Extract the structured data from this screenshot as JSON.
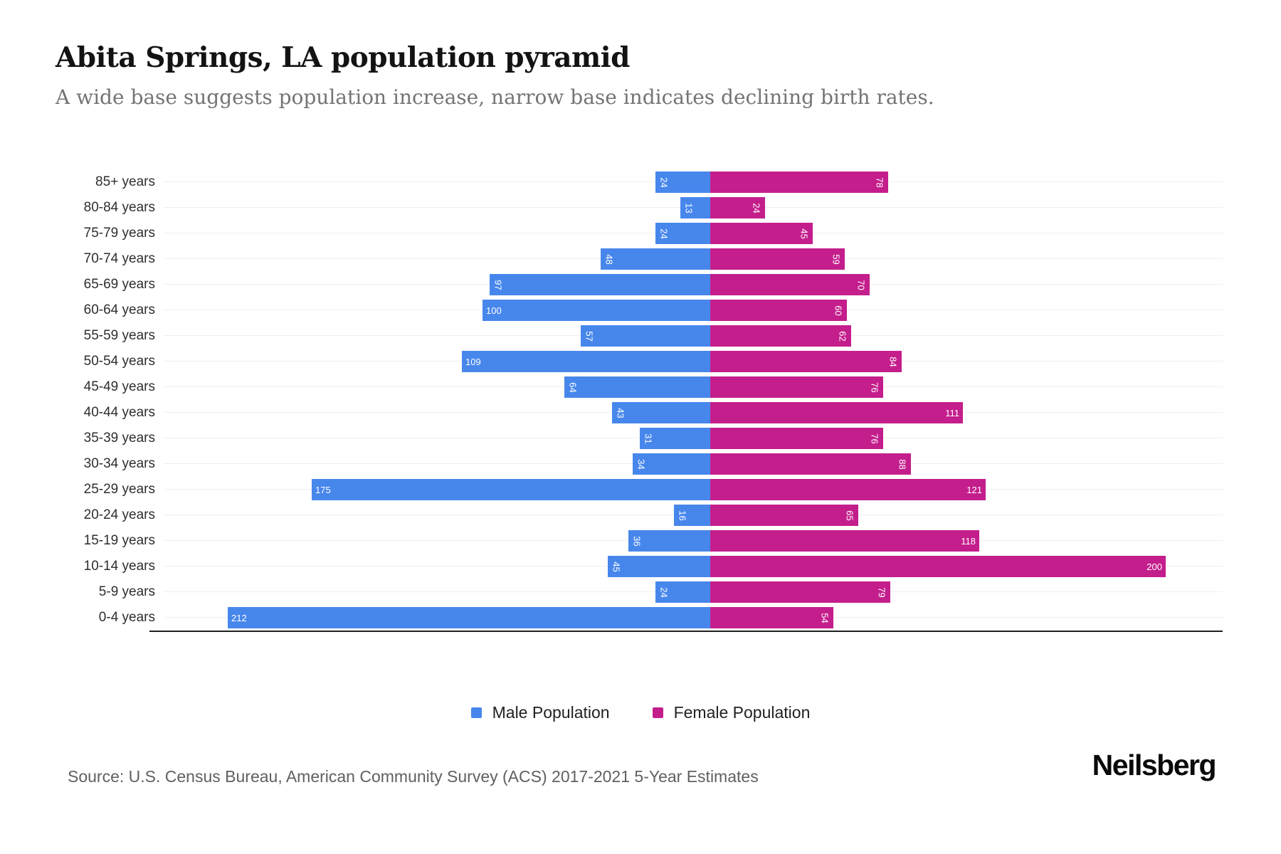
{
  "header": {
    "title": "Abita Springs, LA population pyramid",
    "subtitle": "A wide base suggests population increase, narrow base indicates declining birth rates."
  },
  "chart_data": {
    "type": "bar",
    "variant": "population-pyramid",
    "orientation": "horizontal",
    "title": "Abita Springs, LA population pyramid",
    "categories": [
      "85+ years",
      "80-84 years",
      "75-79 years",
      "70-74 years",
      "65-69 years",
      "60-64 years",
      "55-59 years",
      "50-54 years",
      "45-49 years",
      "40-44 years",
      "35-39 years",
      "30-34 years",
      "25-29 years",
      "20-24 years",
      "15-19 years",
      "10-14 years",
      "5-9 years",
      "0-4 years"
    ],
    "series": [
      {
        "name": "Male Population",
        "side": "left",
        "color": "#4787EC",
        "values": [
          24,
          13,
          24,
          48,
          97,
          100,
          57,
          109,
          64,
          43,
          31,
          34,
          175,
          16,
          36,
          45,
          24,
          212
        ]
      },
      {
        "name": "Female Population",
        "side": "right",
        "color": "#C41E8C",
        "values": [
          78,
          24,
          45,
          59,
          70,
          60,
          62,
          84,
          76,
          111,
          76,
          88,
          121,
          65,
          118,
          200,
          79,
          54
        ]
      }
    ],
    "value_label_color": "#ffffff",
    "grid": true,
    "legend_position": "bottom-center",
    "xlim_each_side": [
      0,
      235
    ]
  },
  "footer": {
    "source": "Source: U.S. Census Bureau, American Community Survey (ACS) 2017-2021 5-Year Estimates",
    "brand": "Neilsberg"
  }
}
